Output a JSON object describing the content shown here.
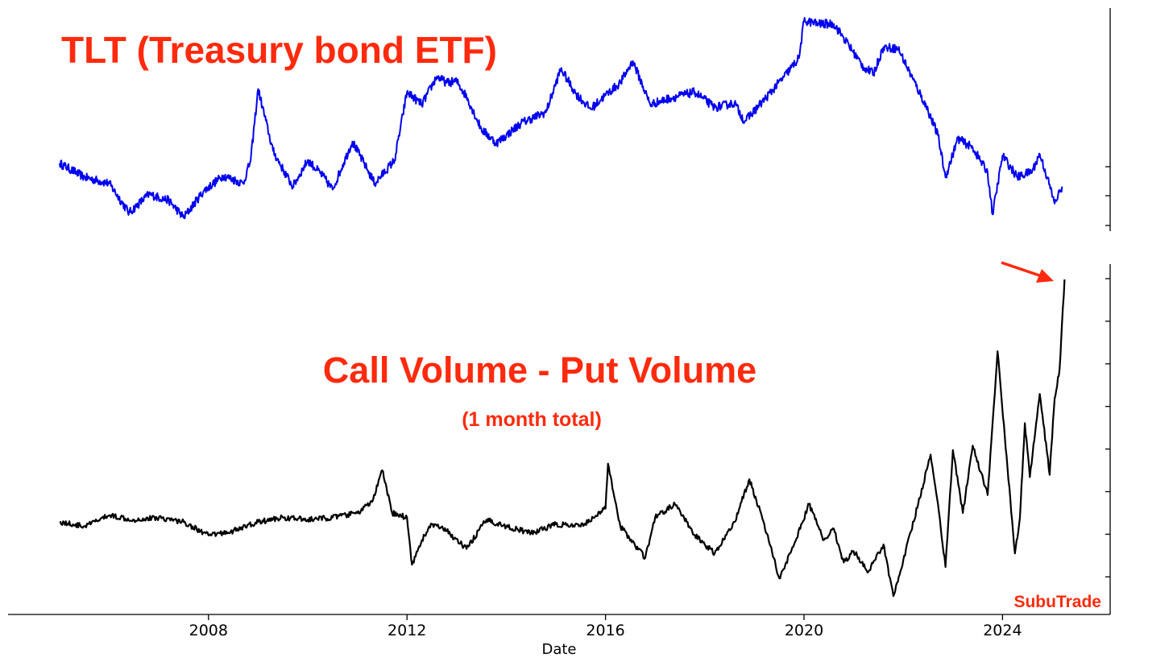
{
  "chart_data": [
    {
      "type": "line",
      "title": "TLT (Treasury bond ETF)",
      "series": [
        {
          "color": "#0000ee",
          "points": [
            [
              2005.0,
              1.8
            ],
            [
              2005.5,
              1.35
            ],
            [
              2006.0,
              1.15
            ],
            [
              2006.4,
              0.2
            ],
            [
              2006.8,
              0.8
            ],
            [
              2007.2,
              0.6
            ],
            [
              2007.5,
              0.05
            ],
            [
              2007.9,
              0.9
            ],
            [
              2008.3,
              1.4
            ],
            [
              2008.7,
              1.15
            ],
            [
              2008.85,
              1.9
            ],
            [
              2009.0,
              4.2
            ],
            [
              2009.3,
              2.2
            ],
            [
              2009.5,
              1.6
            ],
            [
              2009.7,
              1.05
            ],
            [
              2010.0,
              1.9
            ],
            [
              2010.3,
              1.4
            ],
            [
              2010.5,
              0.95
            ],
            [
              2010.9,
              2.5
            ],
            [
              2011.2,
              1.6
            ],
            [
              2011.35,
              1.15
            ],
            [
              2011.75,
              1.9
            ],
            [
              2012.0,
              4.1
            ],
            [
              2012.3,
              3.7
            ],
            [
              2012.6,
              4.6
            ],
            [
              2012.8,
              4.4
            ],
            [
              2013.0,
              4.45
            ],
            [
              2013.2,
              3.95
            ],
            [
              2013.5,
              2.9
            ],
            [
              2013.8,
              2.45
            ],
            [
              2014.0,
              2.7
            ],
            [
              2014.3,
              3.1
            ],
            [
              2014.8,
              3.45
            ],
            [
              2015.1,
              4.85
            ],
            [
              2015.4,
              4.05
            ],
            [
              2015.7,
              3.55
            ],
            [
              2016.0,
              4.0
            ],
            [
              2016.3,
              4.4
            ],
            [
              2016.55,
              5.1
            ],
            [
              2016.9,
              3.7
            ],
            [
              2017.3,
              3.9
            ],
            [
              2017.8,
              4.1
            ],
            [
              2018.2,
              3.6
            ],
            [
              2018.6,
              3.75
            ],
            [
              2018.8,
              3.15
            ],
            [
              2019.2,
              3.85
            ],
            [
              2019.6,
              4.6
            ],
            [
              2019.9,
              5.2
            ],
            [
              2020.0,
              6.4
            ],
            [
              2020.3,
              6.3
            ],
            [
              2020.6,
              6.3
            ],
            [
              2020.8,
              5.85
            ],
            [
              2021.2,
              4.9
            ],
            [
              2021.4,
              4.7
            ],
            [
              2021.6,
              5.55
            ],
            [
              2021.9,
              5.5
            ],
            [
              2022.2,
              4.5
            ],
            [
              2022.5,
              3.5
            ],
            [
              2022.7,
              2.7
            ],
            [
              2022.85,
              1.35
            ],
            [
              2023.1,
              2.6
            ],
            [
              2023.4,
              2.3
            ],
            [
              2023.7,
              1.5
            ],
            [
              2023.8,
              0.15
            ],
            [
              2024.0,
              2.05
            ],
            [
              2024.3,
              1.35
            ],
            [
              2024.6,
              1.55
            ],
            [
              2024.75,
              2.1
            ],
            [
              2024.9,
              1.35
            ],
            [
              2025.05,
              0.5
            ],
            [
              2025.2,
              1.05
            ]
          ]
        }
      ]
    },
    {
      "type": "line",
      "title": "Call Volume - Put Volume",
      "subtitle": "(1 month total)",
      "xlabel": "Date",
      "x_ticks": [
        "2008",
        "2012",
        "2016",
        "2020",
        "2024"
      ],
      "series": [
        {
          "color": "#000000",
          "points": [
            [
              2005.0,
              0.1
            ],
            [
              2005.5,
              0.0
            ],
            [
              2006.0,
              0.25
            ],
            [
              2006.5,
              0.15
            ],
            [
              2007.0,
              0.2
            ],
            [
              2007.5,
              0.1
            ],
            [
              2008.0,
              -0.2
            ],
            [
              2008.5,
              -0.1
            ],
            [
              2009.0,
              0.1
            ],
            [
              2009.5,
              0.2
            ],
            [
              2010.0,
              0.15
            ],
            [
              2010.5,
              0.2
            ],
            [
              2011.0,
              0.3
            ],
            [
              2011.3,
              0.55
            ],
            [
              2011.5,
              1.25
            ],
            [
              2011.7,
              0.3
            ],
            [
              2012.0,
              0.2
            ],
            [
              2012.1,
              -0.85
            ],
            [
              2012.3,
              -0.3
            ],
            [
              2012.5,
              0.05
            ],
            [
              2012.8,
              -0.1
            ],
            [
              2013.2,
              -0.5
            ],
            [
              2013.6,
              0.15
            ],
            [
              2014.0,
              0.0
            ],
            [
              2014.5,
              -0.15
            ],
            [
              2015.0,
              0.05
            ],
            [
              2015.5,
              0.0
            ],
            [
              2016.0,
              0.4
            ],
            [
              2016.05,
              1.4
            ],
            [
              2016.3,
              0.0
            ],
            [
              2016.8,
              -0.7
            ],
            [
              2017.0,
              0.2
            ],
            [
              2017.4,
              0.5
            ],
            [
              2017.8,
              -0.2
            ],
            [
              2018.2,
              -0.6
            ],
            [
              2018.6,
              0.1
            ],
            [
              2018.9,
              1.05
            ],
            [
              2019.2,
              0.05
            ],
            [
              2019.5,
              -1.15
            ],
            [
              2019.8,
              -0.4
            ],
            [
              2020.1,
              0.5
            ],
            [
              2020.4,
              -0.3
            ],
            [
              2020.6,
              -0.05
            ],
            [
              2020.8,
              -0.8
            ],
            [
              2021.0,
              -0.55
            ],
            [
              2021.3,
              -1.0
            ],
            [
              2021.6,
              -0.4
            ],
            [
              2021.8,
              -1.55
            ],
            [
              2022.0,
              -0.75
            ],
            [
              2022.3,
              0.5
            ],
            [
              2022.55,
              1.6
            ],
            [
              2022.7,
              0.5
            ],
            [
              2022.85,
              -0.9
            ],
            [
              2023.0,
              1.7
            ],
            [
              2023.2,
              0.3
            ],
            [
              2023.4,
              1.8
            ],
            [
              2023.7,
              0.7
            ],
            [
              2023.9,
              3.9
            ],
            [
              2024.1,
              1.3
            ],
            [
              2024.25,
              -0.6
            ],
            [
              2024.35,
              0.2
            ],
            [
              2024.45,
              2.3
            ],
            [
              2024.55,
              1.1
            ],
            [
              2024.75,
              2.95
            ],
            [
              2024.95,
              1.15
            ],
            [
              2025.05,
              2.85
            ],
            [
              2025.15,
              3.5
            ],
            [
              2025.25,
              5.5
            ]
          ]
        }
      ]
    }
  ],
  "watermark": "SubuTrade"
}
